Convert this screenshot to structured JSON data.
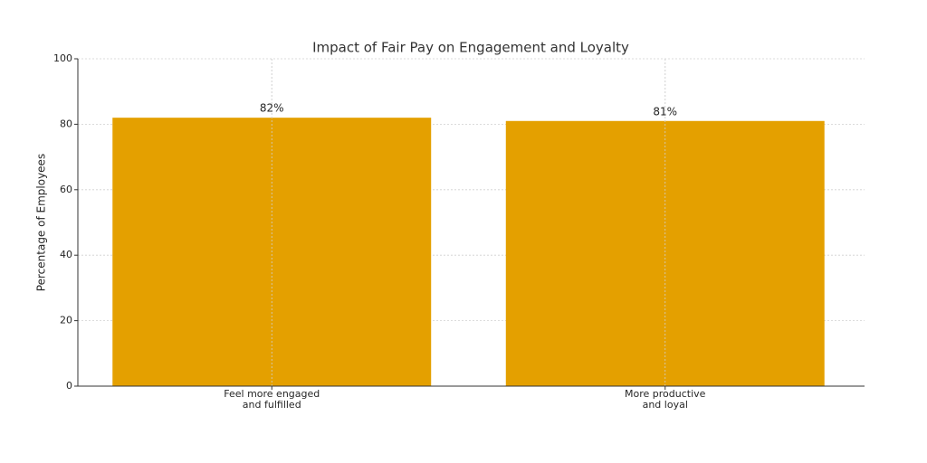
{
  "chart_data": {
    "type": "bar",
    "title": "Impact of Fair Pay on Engagement and Loyalty",
    "y_label": "Percentage of Employees",
    "categories": [
      "Feel more engaged\nand fulfilled",
      "More productive\nand loyal"
    ],
    "values": [
      82,
      81
    ],
    "value_labels": [
      "82%",
      "81%"
    ],
    "color": "#e4a000",
    "ylim": [
      0,
      100
    ],
    "yticks": [
      0,
      20,
      40,
      60,
      80,
      100
    ],
    "grid": true
  }
}
